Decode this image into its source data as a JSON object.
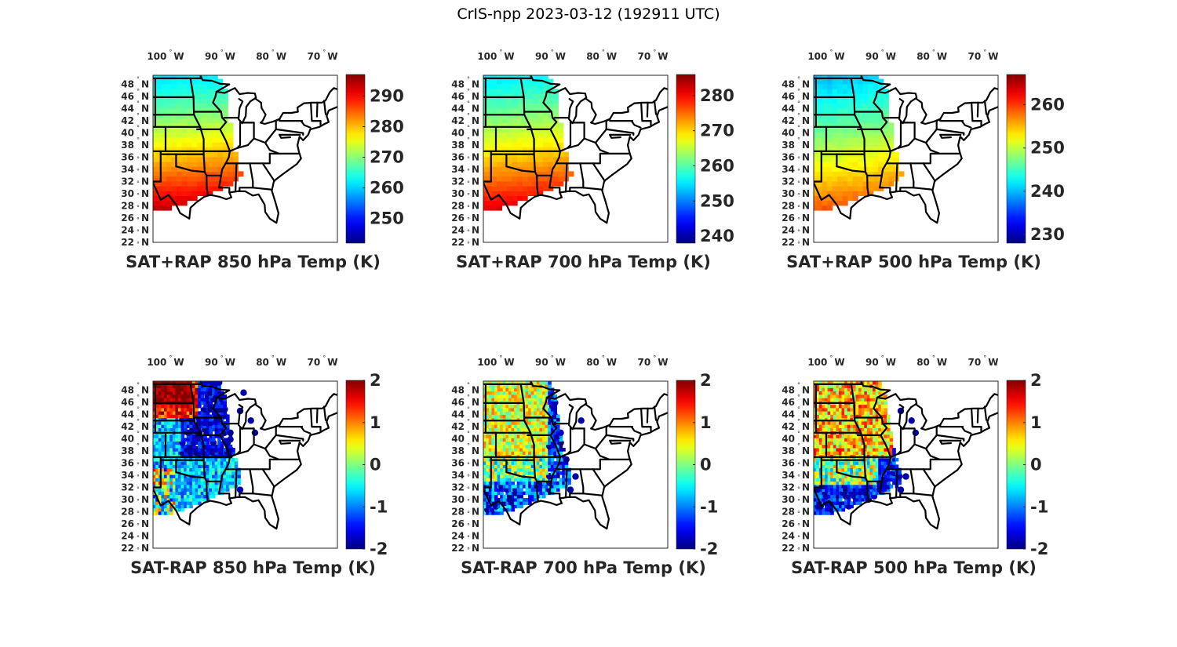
{
  "figure": {
    "title": "CrIS-npp 2023-03-12 (192911 UTC)"
  },
  "colors": {
    "axis": "#262626",
    "coast": "#000000",
    "background": "#ffffff"
  },
  "chart_data": [
    {
      "type": "heatmap",
      "title": "SAT+RAP 850 hPa Temp (K)",
      "lon_ticks": [
        "100",
        "90",
        "80",
        "70"
      ],
      "lon_suffix": "W",
      "lat_ticks": [
        "48",
        "46",
        "44",
        "42",
        "40",
        "38",
        "36",
        "34",
        "32",
        "30",
        "28",
        "26",
        "24",
        "22"
      ],
      "lat_suffix": "N",
      "colorbar": {
        "ticks": [
          "290",
          "280",
          "270",
          "260",
          "250"
        ],
        "tick_values": [
          290,
          280,
          270,
          260,
          250
        ],
        "clim": [
          242,
          297
        ],
        "colormap": "jet"
      },
      "field": {
        "kind": "temp",
        "north_value": 262,
        "south_value": 293
      }
    },
    {
      "type": "heatmap",
      "title": "SAT+RAP 700 hPa Temp (K)",
      "lon_ticks": [
        "100",
        "90",
        "80",
        "70"
      ],
      "lon_suffix": "W",
      "lat_ticks": [
        "48",
        "46",
        "44",
        "42",
        "40",
        "38",
        "36",
        "34",
        "32",
        "30",
        "28",
        "26",
        "24",
        "22"
      ],
      "lat_suffix": "N",
      "colorbar": {
        "ticks": [
          "280",
          "270",
          "260",
          "250",
          "240"
        ],
        "tick_values": [
          280,
          270,
          260,
          250,
          240
        ],
        "clim": [
          238,
          286
        ],
        "colormap": "jet"
      },
      "field": {
        "kind": "temp",
        "north_value": 256,
        "south_value": 281
      }
    },
    {
      "type": "heatmap",
      "title": "SAT+RAP 500 hPa Temp (K)",
      "lon_ticks": [
        "100",
        "90",
        "80",
        "70"
      ],
      "lon_suffix": "W",
      "lat_ticks": [
        "48",
        "46",
        "44",
        "42",
        "40",
        "38",
        "36",
        "34",
        "32",
        "30",
        "28",
        "26",
        "24",
        "22"
      ],
      "lat_suffix": "N",
      "colorbar": {
        "ticks": [
          "260",
          "250",
          "240",
          "230"
        ],
        "tick_values": [
          260,
          250,
          240,
          230
        ],
        "clim": [
          228,
          267
        ],
        "colormap": "jet"
      },
      "field": {
        "kind": "temp",
        "north_value": 241,
        "south_value": 259
      }
    },
    {
      "type": "heatmap",
      "title": "SAT-RAP 850 hPa Temp (K)",
      "lon_ticks": [
        "100",
        "90",
        "80",
        "70"
      ],
      "lon_suffix": "W",
      "lat_ticks": [
        "48",
        "46",
        "44",
        "42",
        "40",
        "38",
        "36",
        "34",
        "32",
        "30",
        "28",
        "26",
        "24",
        "22"
      ],
      "lat_suffix": "N",
      "colorbar": {
        "ticks": [
          "2",
          "1",
          "0",
          "-1",
          "-2"
        ],
        "tick_values": [
          2,
          1,
          0,
          -1,
          -2
        ],
        "clim": [
          -2,
          2
        ],
        "colormap": "jet"
      },
      "field": {
        "kind": "diff850"
      }
    },
    {
      "type": "heatmap",
      "title": "SAT-RAP 700 hPa Temp (K)",
      "lon_ticks": [
        "100",
        "90",
        "80",
        "70"
      ],
      "lon_suffix": "W",
      "lat_ticks": [
        "48",
        "46",
        "44",
        "42",
        "40",
        "38",
        "36",
        "34",
        "32",
        "30",
        "28",
        "26",
        "24",
        "22"
      ],
      "lat_suffix": "N",
      "colorbar": {
        "ticks": [
          "2",
          "1",
          "0",
          "-1",
          "-2"
        ],
        "tick_values": [
          2,
          1,
          0,
          -1,
          -2
        ],
        "clim": [
          -2,
          2
        ],
        "colormap": "jet"
      },
      "field": {
        "kind": "diff700"
      }
    },
    {
      "type": "heatmap",
      "title": "SAT-RAP 500 hPa Temp (K)",
      "lon_ticks": [
        "100",
        "90",
        "80",
        "70"
      ],
      "lon_suffix": "W",
      "lat_ticks": [
        "48",
        "46",
        "44",
        "42",
        "40",
        "38",
        "36",
        "34",
        "32",
        "30",
        "28",
        "26",
        "24",
        "22"
      ],
      "lat_suffix": "N",
      "colorbar": {
        "ticks": [
          "2",
          "1",
          "0",
          "-1",
          "-2"
        ],
        "tick_values": [
          2,
          1,
          0,
          -1,
          -2
        ],
        "clim": [
          -2,
          2
        ],
        "colormap": "jet"
      },
      "field": {
        "kind": "diff500"
      }
    }
  ]
}
